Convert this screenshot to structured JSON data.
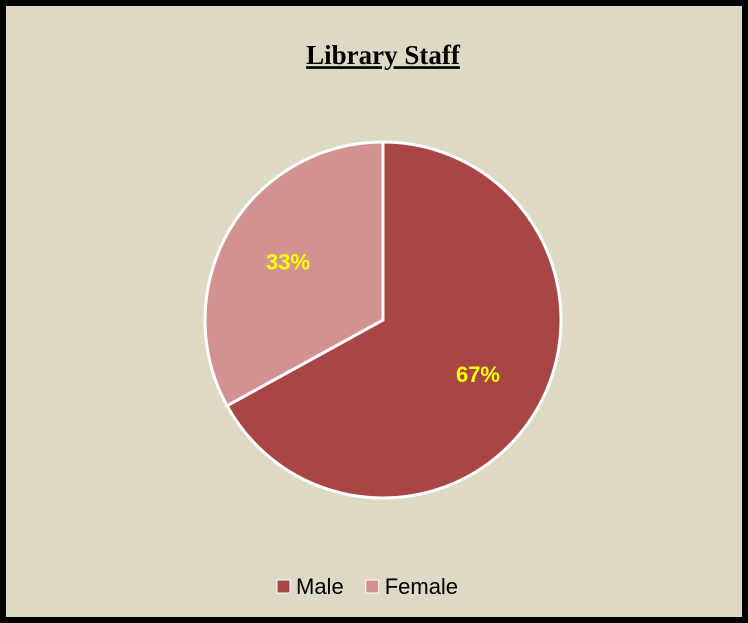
{
  "chart_data": {
    "type": "pie",
    "title": "Library Staff",
    "categories": [
      "Male",
      "Female"
    ],
    "values": [
      67,
      33
    ],
    "value_labels": [
      "67%",
      "33%"
    ],
    "colors": [
      "#a84646",
      "#d39292"
    ],
    "legend": "bottom"
  }
}
